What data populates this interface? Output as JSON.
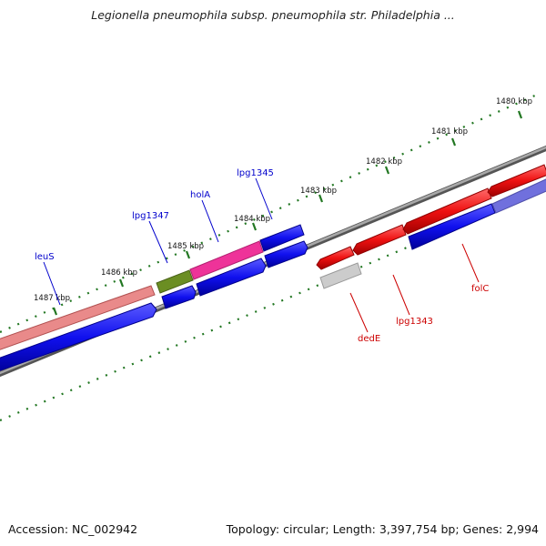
{
  "title": "Legionella pneumophila subsp. pneumophila str. Philadelphia ...",
  "footer": {
    "accession": "Accession: NC_002942",
    "summary": "Topology: circular; Length: 3,397,754 bp; Genes: 2,994"
  },
  "kbp_ticks": [
    {
      "label": "1480 kbp"
    },
    {
      "label": "1481 kbp"
    },
    {
      "label": "1482 kbp"
    },
    {
      "label": "1483 kbp"
    },
    {
      "label": "1484 kbp"
    },
    {
      "label": "1485 kbp"
    },
    {
      "label": "1486 kbp"
    },
    {
      "label": "1487 kbp"
    }
  ],
  "gene_labels": [
    {
      "name": "leuS",
      "color": "#0000cc"
    },
    {
      "name": "lpg1347",
      "color": "#0000cc"
    },
    {
      "name": "holA",
      "color": "#0000cc"
    },
    {
      "name": "lpg1345",
      "color": "#0000cc"
    },
    {
      "name": "dedE",
      "color": "#cc0000"
    },
    {
      "name": "lpg1343",
      "color": "#cc0000"
    },
    {
      "name": "folC",
      "color": "#cc0000"
    }
  ],
  "colors": {
    "backbone": "#888888",
    "tick": "#227722",
    "forward_gene": "#1010ee",
    "reverse_gene": "#ee1111",
    "rna_gene": "#ee3399",
    "hypothetical": "#6b8e23",
    "faded_red": "#ee8888",
    "grey_gene": "#c8c8c8",
    "faded_blue": "#7777dd"
  }
}
